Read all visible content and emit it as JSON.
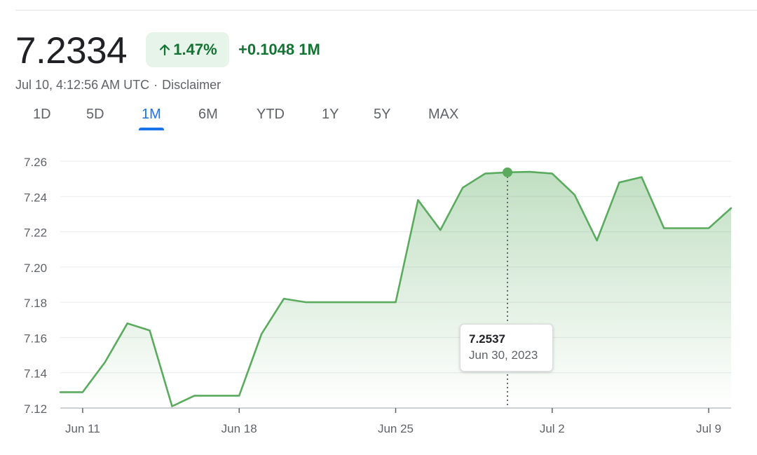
{
  "header": {
    "price": "7.2334",
    "change_percent": "1.47%",
    "change_abs": "+0.1048 1M",
    "timestamp": "Jul 10, 4:12:56 AM UTC",
    "separator": "·",
    "disclaimer": "Disclaimer",
    "arrow_icon": "arrow-up-icon"
  },
  "ranges": [
    {
      "label": "1D",
      "active": false
    },
    {
      "label": "5D",
      "active": false
    },
    {
      "label": "1M",
      "active": true
    },
    {
      "label": "6M",
      "active": false
    },
    {
      "label": "YTD",
      "active": false
    },
    {
      "label": "1Y",
      "active": false
    },
    {
      "label": "5Y",
      "active": false
    },
    {
      "label": "MAX",
      "active": false
    }
  ],
  "colors": {
    "line": "#5bab5f",
    "positive_text": "#137333",
    "positive_bg": "#e6f4ea",
    "active_tab": "#1a73e8",
    "grid": "#e8eaed",
    "axis_text": "#5f6368"
  },
  "tooltip": {
    "value": "7.2537",
    "date": "Jun 30, 2023"
  },
  "chart_data": {
    "type": "area",
    "x": [
      "2023-06-10",
      "2023-06-11",
      "2023-06-12",
      "2023-06-13",
      "2023-06-14",
      "2023-06-15",
      "2023-06-16",
      "2023-06-17",
      "2023-06-18",
      "2023-06-19",
      "2023-06-20",
      "2023-06-21",
      "2023-06-22",
      "2023-06-23",
      "2023-06-24",
      "2023-06-25",
      "2023-06-26",
      "2023-06-27",
      "2023-06-28",
      "2023-06-29",
      "2023-06-30",
      "2023-07-01",
      "2023-07-02",
      "2023-07-03",
      "2023-07-04",
      "2023-07-05",
      "2023-07-06",
      "2023-07-07",
      "2023-07-08",
      "2023-07-09",
      "2023-07-10"
    ],
    "values": [
      7.129,
      7.129,
      7.146,
      7.168,
      7.164,
      7.121,
      7.127,
      7.127,
      7.127,
      7.162,
      7.182,
      7.18,
      7.18,
      7.18,
      7.18,
      7.18,
      7.238,
      7.221,
      7.245,
      7.253,
      7.2537,
      7.254,
      7.253,
      7.241,
      7.215,
      7.248,
      7.251,
      7.222,
      7.222,
      7.222,
      7.2334
    ],
    "y_ticks": [
      "7.26",
      "7.24",
      "7.22",
      "7.20",
      "7.18",
      "7.16",
      "7.14",
      "7.12"
    ],
    "ylim": [
      7.12,
      7.26
    ],
    "x_ticks": [
      {
        "label": "Jun 11",
        "date": "2023-06-11"
      },
      {
        "label": "Jun 18",
        "date": "2023-06-18"
      },
      {
        "label": "Jun 25",
        "date": "2023-06-25"
      },
      {
        "label": "Jul 2",
        "date": "2023-07-02"
      },
      {
        "label": "Jul 9",
        "date": "2023-07-09"
      }
    ],
    "highlight": {
      "date": "2023-06-30",
      "value": 7.2537
    },
    "grid": true,
    "title": "",
    "xlabel": "",
    "ylabel": ""
  }
}
